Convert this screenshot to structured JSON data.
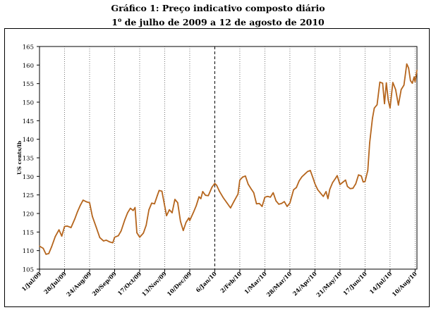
{
  "title": "Gráfico 1:  Preço indicativo composto diário",
  "subtitle_pre": "1",
  "subtitle_sup": "o",
  "subtitle_post": " de julho de 2009 a 12 de agosto de 2010",
  "chart_data": {
    "type": "line",
    "title": "Gráfico 1:  Preço indicativo composto diário",
    "subtitle": "1º de julho de 2009 a 12 de agosto de 2010",
    "ylabel": "US cents/lb",
    "xlabel": "",
    "ylim": [
      105,
      165
    ],
    "yticks": [
      105,
      110,
      115,
      120,
      125,
      130,
      135,
      140,
      145,
      150,
      155,
      160,
      165
    ],
    "x_dates": [
      "2009-07-01",
      "2009-07-28",
      "2009-08-24",
      "2009-09-20",
      "2009-10-17",
      "2009-11-13",
      "2009-12-10",
      "2010-01-06",
      "2010-02-02",
      "2010-03-01",
      "2010-03-28",
      "2010-04-24",
      "2010-05-21",
      "2010-06-17",
      "2010-07-14",
      "2010-08-10"
    ],
    "x_tick_labels": [
      "1/Jul/09",
      "28/Jul/09",
      "24/Aug/09",
      "20/Sep/09",
      "17/Oct/09",
      "13/Nov/09",
      "10/Dec/09",
      "6/Jan/10",
      "2/Feb/10",
      "1/Mar/10",
      "28/Mar/10",
      "24/Apr/10",
      "21/May/10",
      "17/Jun/10",
      "14/Jul/10",
      "10/Aug/10"
    ],
    "grid": "vertical dotted at each date tick; dashed vertical line at the first tick of each year",
    "series": [
      {
        "color": "#B5651D",
        "points": [
          [
            "2009-07-01",
            111.2
          ],
          [
            "2009-07-05",
            110.6
          ],
          [
            "2009-07-08",
            109.0
          ],
          [
            "2009-07-11",
            109.2
          ],
          [
            "2009-07-14",
            111.0
          ],
          [
            "2009-07-18",
            113.8
          ],
          [
            "2009-07-22",
            115.6
          ],
          [
            "2009-07-25",
            113.9
          ],
          [
            "2009-07-28",
            116.5
          ],
          [
            "2009-07-31",
            116.6
          ],
          [
            "2009-08-04",
            116.2
          ],
          [
            "2009-08-08",
            118.5
          ],
          [
            "2009-08-11",
            120.5
          ],
          [
            "2009-08-14",
            122.2
          ],
          [
            "2009-08-17",
            123.6
          ],
          [
            "2009-08-21",
            123.1
          ],
          [
            "2009-08-24",
            122.9
          ],
          [
            "2009-08-27",
            119.2
          ],
          [
            "2009-08-31",
            116.4
          ],
          [
            "2009-09-04",
            113.5
          ],
          [
            "2009-09-08",
            112.6
          ],
          [
            "2009-09-11",
            112.8
          ],
          [
            "2009-09-15",
            112.3
          ],
          [
            "2009-09-18",
            112.1
          ],
          [
            "2009-09-20",
            113.6
          ],
          [
            "2009-09-24",
            114.0
          ],
          [
            "2009-09-27",
            115.3
          ],
          [
            "2009-10-01",
            118.3
          ],
          [
            "2009-10-04",
            120.2
          ],
          [
            "2009-10-07",
            121.4
          ],
          [
            "2009-10-10",
            120.8
          ],
          [
            "2009-10-12",
            121.6
          ],
          [
            "2009-10-14",
            114.8
          ],
          [
            "2009-10-17",
            113.6
          ],
          [
            "2009-10-21",
            114.7
          ],
          [
            "2009-10-24",
            116.8
          ],
          [
            "2009-10-27",
            121.0
          ],
          [
            "2009-10-30",
            122.8
          ],
          [
            "2009-11-02",
            122.6
          ],
          [
            "2009-11-05",
            124.8
          ],
          [
            "2009-11-07",
            126.2
          ],
          [
            "2009-11-10",
            126.0
          ],
          [
            "2009-11-13",
            122.0
          ],
          [
            "2009-11-15",
            119.4
          ],
          [
            "2009-11-18",
            121.0
          ],
          [
            "2009-11-21",
            120.2
          ],
          [
            "2009-11-24",
            123.8
          ],
          [
            "2009-11-27",
            122.9
          ],
          [
            "2009-11-30",
            117.9
          ],
          [
            "2009-12-03",
            115.4
          ],
          [
            "2009-12-06",
            117.6
          ],
          [
            "2009-12-09",
            118.8
          ],
          [
            "2009-12-10",
            118.1
          ],
          [
            "2009-12-14",
            120.3
          ],
          [
            "2009-12-17",
            122.1
          ],
          [
            "2009-12-20",
            124.5
          ],
          [
            "2009-12-22",
            124.0
          ],
          [
            "2009-12-24",
            125.9
          ],
          [
            "2009-12-27",
            124.9
          ],
          [
            "2009-12-30",
            124.8
          ],
          [
            "2010-01-03",
            127.1
          ],
          [
            "2010-01-06",
            128.1
          ],
          [
            "2010-01-08",
            127.6
          ],
          [
            "2010-01-11",
            126.0
          ],
          [
            "2010-01-15",
            124.3
          ],
          [
            "2010-01-19",
            122.9
          ],
          [
            "2010-01-23",
            121.5
          ],
          [
            "2010-01-27",
            123.4
          ],
          [
            "2010-01-31",
            125.2
          ],
          [
            "2010-02-02",
            129.0
          ],
          [
            "2010-02-05",
            129.8
          ],
          [
            "2010-02-08",
            130.1
          ],
          [
            "2010-02-11",
            127.9
          ],
          [
            "2010-02-14",
            126.7
          ],
          [
            "2010-02-17",
            125.6
          ],
          [
            "2010-02-20",
            122.6
          ],
          [
            "2010-02-23",
            122.7
          ],
          [
            "2010-02-26",
            121.9
          ],
          [
            "2010-03-01",
            124.4
          ],
          [
            "2010-03-04",
            124.6
          ],
          [
            "2010-03-07",
            124.4
          ],
          [
            "2010-03-10",
            125.6
          ],
          [
            "2010-03-13",
            123.4
          ],
          [
            "2010-03-16",
            122.5
          ],
          [
            "2010-03-19",
            122.7
          ],
          [
            "2010-03-22",
            123.2
          ],
          [
            "2010-03-25",
            121.9
          ],
          [
            "2010-03-28",
            122.8
          ],
          [
            "2010-04-01",
            126.4
          ],
          [
            "2010-04-04",
            127.0
          ],
          [
            "2010-04-07",
            128.8
          ],
          [
            "2010-04-10",
            129.9
          ],
          [
            "2010-04-13",
            130.6
          ],
          [
            "2010-04-16",
            131.3
          ],
          [
            "2010-04-19",
            131.6
          ],
          [
            "2010-04-22",
            129.5
          ],
          [
            "2010-04-24",
            128.0
          ],
          [
            "2010-04-27",
            126.4
          ],
          [
            "2010-04-30",
            125.5
          ],
          [
            "2010-05-03",
            124.6
          ],
          [
            "2010-05-06",
            125.9
          ],
          [
            "2010-05-08",
            124.0
          ],
          [
            "2010-05-10",
            126.5
          ],
          [
            "2010-05-13",
            128.3
          ],
          [
            "2010-05-16",
            129.4
          ],
          [
            "2010-05-18",
            130.2
          ],
          [
            "2010-05-21",
            127.8
          ],
          [
            "2010-05-24",
            128.4
          ],
          [
            "2010-05-27",
            129.0
          ],
          [
            "2010-05-29",
            127.3
          ],
          [
            "2010-06-01",
            126.7
          ],
          [
            "2010-06-04",
            126.8
          ],
          [
            "2010-06-07",
            128.0
          ],
          [
            "2010-06-10",
            130.4
          ],
          [
            "2010-06-13",
            130.1
          ],
          [
            "2010-06-15",
            128.5
          ],
          [
            "2010-06-17",
            128.6
          ],
          [
            "2010-06-20",
            131.6
          ],
          [
            "2010-06-22",
            139.0
          ],
          [
            "2010-06-25",
            145.6
          ],
          [
            "2010-06-27",
            148.4
          ],
          [
            "2010-06-30",
            149.3
          ],
          [
            "2010-07-03",
            155.4
          ],
          [
            "2010-07-06",
            155.1
          ],
          [
            "2010-07-08",
            149.6
          ],
          [
            "2010-07-10",
            155.2
          ],
          [
            "2010-07-12",
            150.6
          ],
          [
            "2010-07-14",
            148.4
          ],
          [
            "2010-07-17",
            155.3
          ],
          [
            "2010-07-20",
            153.4
          ],
          [
            "2010-07-23",
            149.2
          ],
          [
            "2010-07-26",
            153.4
          ],
          [
            "2010-07-29",
            154.6
          ],
          [
            "2010-08-01",
            160.3
          ],
          [
            "2010-08-03",
            159.2
          ],
          [
            "2010-08-05",
            155.8
          ],
          [
            "2010-08-07",
            155.1
          ],
          [
            "2010-08-09",
            156.8
          ],
          [
            "2010-08-10",
            155.5
          ],
          [
            "2010-08-12",
            158.6
          ]
        ]
      }
    ]
  }
}
